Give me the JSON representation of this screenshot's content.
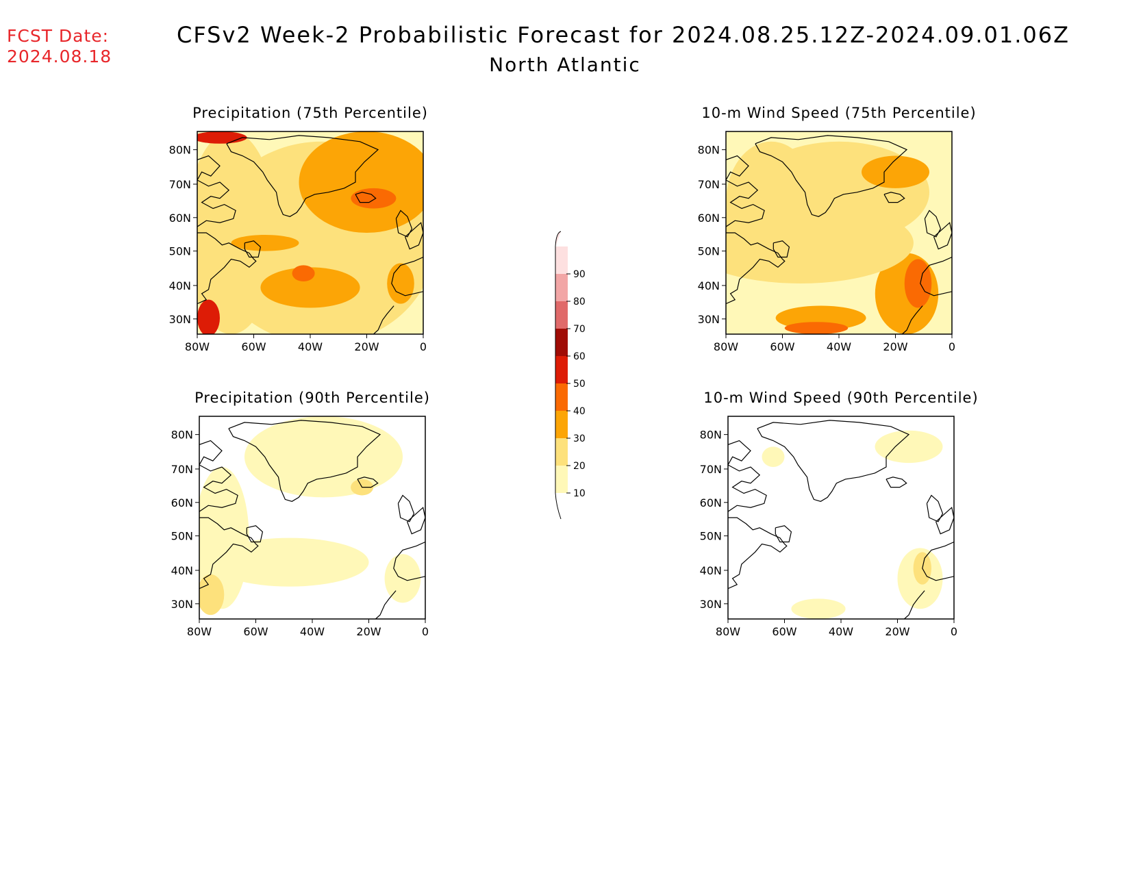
{
  "header": {
    "fcst_label": "FCST Date:",
    "fcst_date": "2024.08.18",
    "title": "CFSv2 Week-2 Probabilistic Forecast for 2024.08.25.12Z-2024.09.01.06Z",
    "subtitle": "North Atlantic"
  },
  "panels": [
    {
      "title": "Precipitation (75th Percentile)",
      "field": "precip75"
    },
    {
      "title": "10-m Wind Speed (75th Percentile)",
      "field": "wind75"
    },
    {
      "title": "Precipitation (90th Percentile)",
      "field": "precip90"
    },
    {
      "title": "10-m Wind Speed (90th Percentile)",
      "field": "wind90"
    }
  ],
  "axes": {
    "lat_labels": [
      "80N",
      "70N",
      "60N",
      "50N",
      "40N",
      "30N"
    ],
    "lon_labels": [
      "80W",
      "60W",
      "40W",
      "20W",
      "0"
    ]
  },
  "colorbar": {
    "levels": [
      "10",
      "20",
      "30",
      "40",
      "50",
      "60",
      "70",
      "80",
      "90"
    ],
    "colors": [
      "#fff8b8",
      "#fde17c",
      "#fca506",
      "#fa6a03",
      "#dd1c06",
      "#a00c06",
      "#e06a6a",
      "#f2a6a6",
      "#fde0e0"
    ]
  },
  "colors": {
    "fcst_date": "#e8262a",
    "coast": "#000000"
  }
}
